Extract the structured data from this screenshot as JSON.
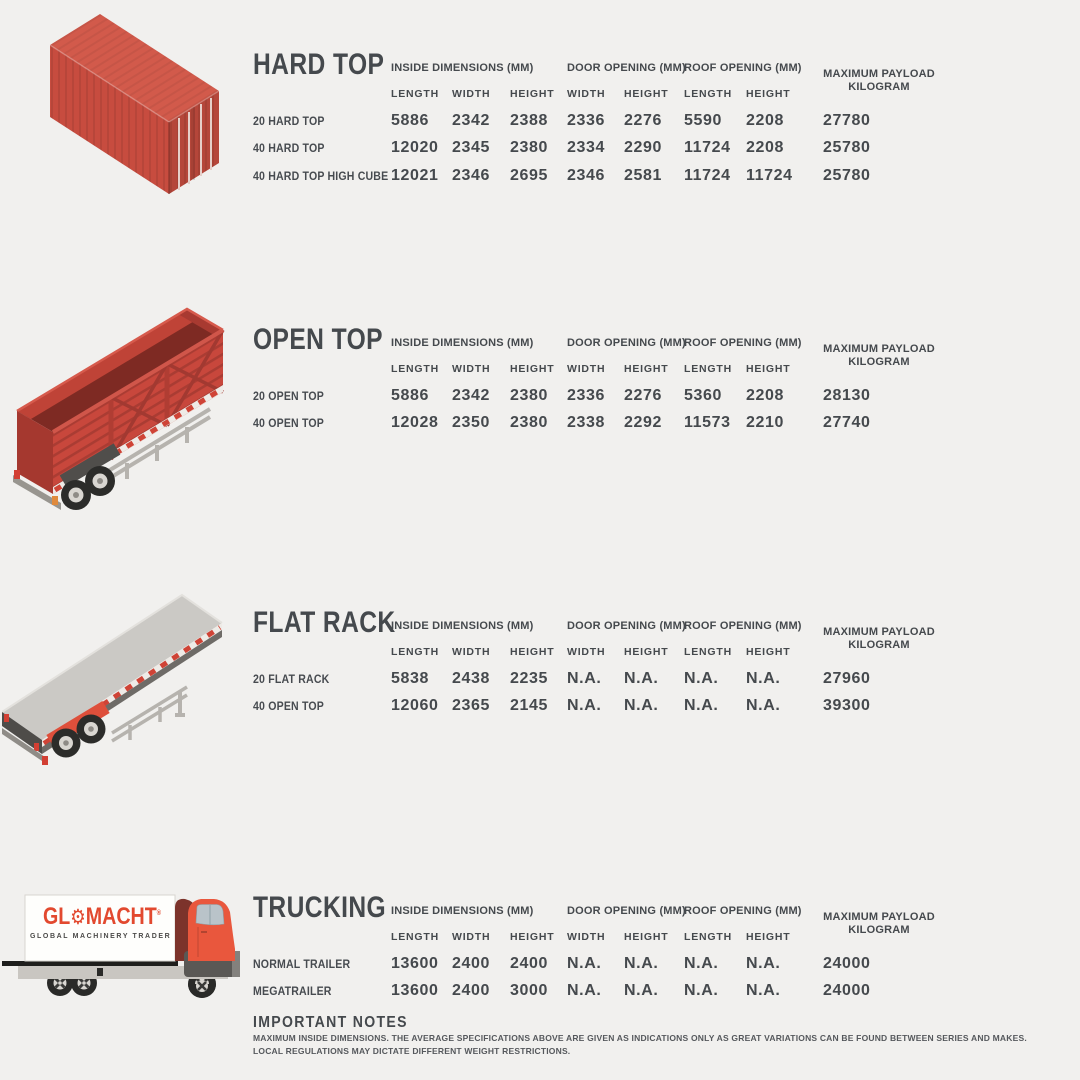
{
  "page": {
    "background": "#f1f0ee",
    "text_color": "#474b50",
    "accent_red": "#d6574b"
  },
  "table_headers": {
    "inside": "INSIDE DIMENSIONS (MM)",
    "door": "DOOR OPENING (MM)",
    "roof": "ROOF OPENING (MM)",
    "payload_line1": "MAXIMUM PAYLOAD",
    "payload_line2": "KILOGRAM",
    "sub": [
      "LENGTH",
      "WIDTH",
      "HEIGHT",
      "WIDTH",
      "HEIGHT",
      "LENGTH",
      "HEIGHT"
    ]
  },
  "sections": [
    {
      "title": "HARD TOP",
      "illustration": "red-shipping-container",
      "rows": [
        {
          "label": "20 HARD TOP",
          "values": [
            "5886",
            "2342",
            "2388",
            "2336",
            "2276",
            "5590",
            "2208",
            "27780"
          ]
        },
        {
          "label": "40 HARD TOP",
          "values": [
            "12020",
            "2345",
            "2380",
            "2334",
            "2290",
            "11724",
            "2208",
            "25780"
          ]
        },
        {
          "label": "40 HARD TOP HIGH CUBE",
          "values": [
            "12021",
            "2346",
            "2695",
            "2346",
            "2581",
            "11724",
            "11724",
            "25780"
          ]
        }
      ]
    },
    {
      "title": "OPEN TOP",
      "illustration": "open-top-trailer",
      "rows": [
        {
          "label": "20 OPEN TOP",
          "values": [
            "5886",
            "2342",
            "2380",
            "2336",
            "2276",
            "5360",
            "2208",
            "28130"
          ]
        },
        {
          "label": "40 OPEN TOP",
          "values": [
            "12028",
            "2350",
            "2380",
            "2338",
            "2292",
            "11573",
            "2210",
            "27740"
          ]
        }
      ]
    },
    {
      "title": "FLAT RACK",
      "illustration": "flat-rack-trailer",
      "rows": [
        {
          "label": "20 FLAT RACK",
          "values": [
            "5838",
            "2438",
            "2235",
            "N.A.",
            "N.A.",
            "N.A.",
            "N.A.",
            "27960"
          ]
        },
        {
          "label": "40 OPEN TOP",
          "values": [
            "12060",
            "2365",
            "2145",
            "N.A.",
            "N.A.",
            "N.A.",
            "N.A.",
            "39300"
          ]
        }
      ]
    },
    {
      "title": "TRUCKING",
      "illustration": "glomacht-truck",
      "rows": [
        {
          "label": "NORMAL TRAILER",
          "values": [
            "13600",
            "2400",
            "2400",
            "N.A.",
            "N.A.",
            "N.A.",
            "N.A.",
            "24000"
          ]
        },
        {
          "label": "MEGATRAILER",
          "values": [
            "13600",
            "2400",
            "3000",
            "N.A.",
            "N.A.",
            "N.A.",
            "N.A.",
            "24000"
          ]
        }
      ]
    }
  ],
  "truck_logo": {
    "brand_prefix": "GL",
    "brand_suffix": "MACHT",
    "gear_glyph": "⚙",
    "registered_mark": "®",
    "tagline": "GLOBAL MACHINERY TRADER",
    "brand_color": "#e2492f"
  },
  "notes": {
    "heading": "IMPORTANT NOTES",
    "lines": [
      "MAXIMUM INSIDE DIMENSIONS. THE AVERAGE SPECIFICATIONS ABOVE ARE GIVEN AS INDICATIONS ONLY AS GREAT VARIATIONS CAN BE FOUND BETWEEN SERIES AND MAKES.",
      "LOCAL REGULATIONS MAY DICTATE DIFFERENT WEIGHT RESTRICTIONS."
    ]
  }
}
